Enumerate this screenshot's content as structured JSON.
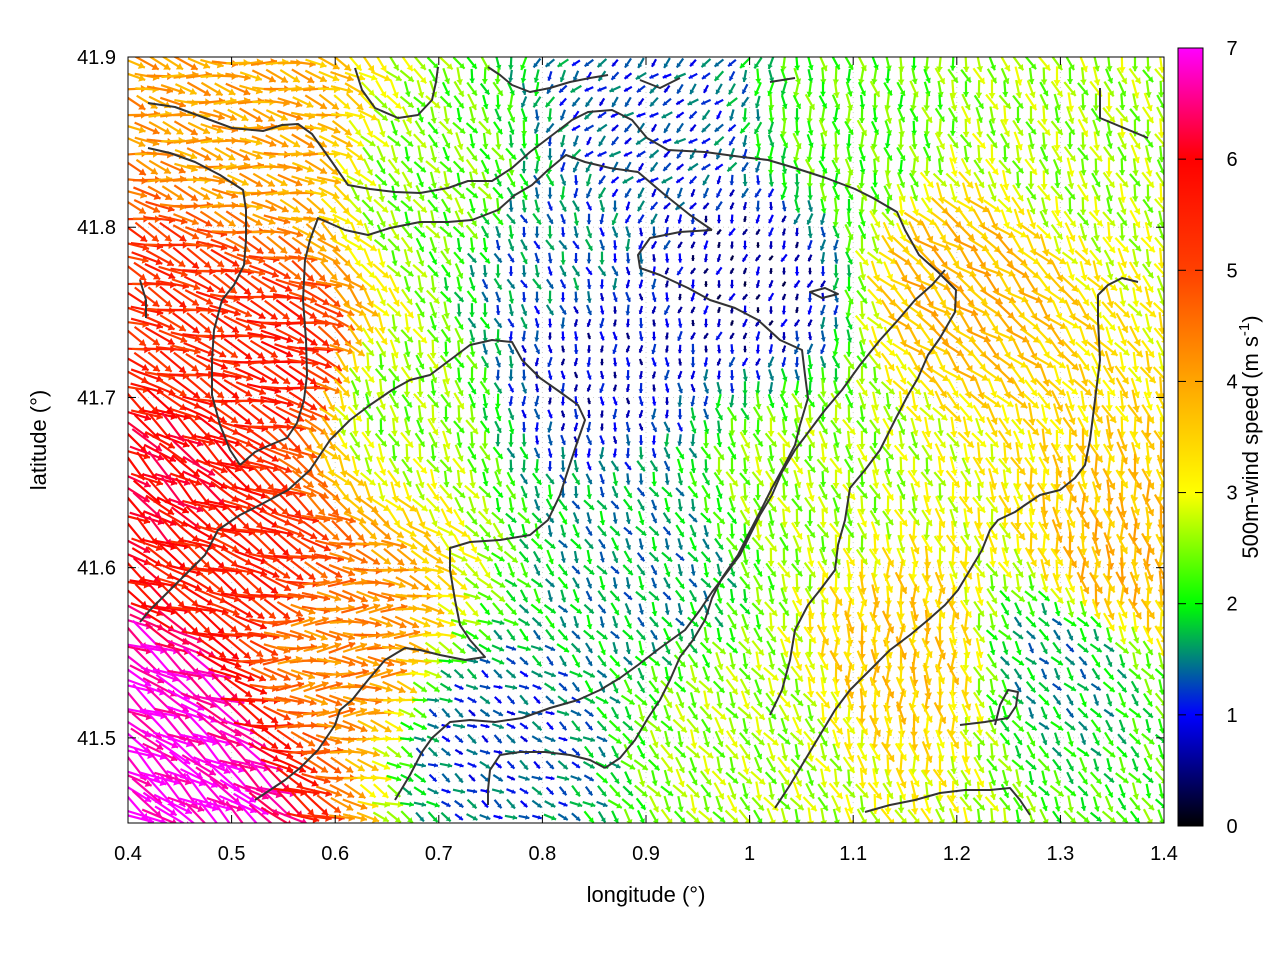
{
  "chart_data": {
    "type": "vector-field",
    "xlabel": "longitude (°)",
    "ylabel": "latitude (°)",
    "colorbar_label": "500m-wind speed (m s",
    "colorbar_label_sup": "-1",
    "colorbar_label_close": ")",
    "xlim": [
      0.4,
      1.4
    ],
    "ylim": [
      41.45,
      41.9
    ],
    "xticks": [
      "0.4",
      "0.5",
      "0.6",
      "0.7",
      "0.8",
      "0.9",
      "1",
      "1.1",
      "1.2",
      "1.3",
      "1.4"
    ],
    "xtick_values": [
      0.4,
      0.5,
      0.6,
      0.7,
      0.8,
      0.9,
      1.0,
      1.1,
      1.2,
      1.3,
      1.4
    ],
    "yticks": [
      "41.5",
      "41.6",
      "41.7",
      "41.8",
      "41.9"
    ],
    "ytick_values": [
      41.5,
      41.6,
      41.7,
      41.8,
      41.9
    ],
    "colorbar_range": [
      0,
      7
    ],
    "colorbar_ticks": [
      "0",
      "1",
      "2",
      "3",
      "4",
      "5",
      "6",
      "7"
    ],
    "colorbar_tick_values": [
      0,
      1,
      2,
      3,
      4,
      5,
      6,
      7
    ],
    "colormap": [
      {
        "v": 0,
        "color": "#000000"
      },
      {
        "v": 1,
        "color": "#0000ff"
      },
      {
        "v": 1.5,
        "color": "#008080"
      },
      {
        "v": 2,
        "color": "#00ff00"
      },
      {
        "v": 3,
        "color": "#ffff00"
      },
      {
        "v": 4,
        "color": "#ffa500"
      },
      {
        "v": 5,
        "color": "#ff4000"
      },
      {
        "v": 6,
        "color": "#ff0000"
      },
      {
        "v": 7,
        "color": "#ff00ff"
      }
    ],
    "grid": true,
    "wind_samples": [
      {
        "lon": 0.42,
        "lat": 41.52,
        "speed": 6.9,
        "dir": 120
      },
      {
        "lon": 0.45,
        "lat": 41.47,
        "speed": 7.0,
        "dir": 125
      },
      {
        "lon": 0.43,
        "lat": 41.65,
        "speed": 6.0,
        "dir": 125
      },
      {
        "lon": 0.45,
        "lat": 41.75,
        "speed": 5.3,
        "dir": 110
      },
      {
        "lon": 0.55,
        "lat": 41.72,
        "speed": 5.6,
        "dir": 105
      },
      {
        "lon": 0.5,
        "lat": 41.6,
        "speed": 5.5,
        "dir": 115
      },
      {
        "lon": 0.52,
        "lat": 41.85,
        "speed": 4.0,
        "dir": 100
      },
      {
        "lon": 0.6,
        "lat": 41.55,
        "speed": 4.3,
        "dir": 90
      },
      {
        "lon": 0.65,
        "lat": 41.7,
        "speed": 2.5,
        "dir": 160
      },
      {
        "lon": 0.7,
        "lat": 41.82,
        "speed": 2.4,
        "dir": 150
      },
      {
        "lon": 0.8,
        "lat": 41.78,
        "speed": 1.4,
        "dir": 160
      },
      {
        "lon": 0.85,
        "lat": 41.72,
        "speed": 0.8,
        "dir": 180
      },
      {
        "lon": 0.9,
        "lat": 41.6,
        "speed": 1.6,
        "dir": 150
      },
      {
        "lon": 0.9,
        "lat": 41.86,
        "speed": 1.2,
        "dir": 230
      },
      {
        "lon": 1.0,
        "lat": 41.77,
        "speed": 0.6,
        "dir": 200
      },
      {
        "lon": 1.05,
        "lat": 41.65,
        "speed": 2.6,
        "dir": 160
      },
      {
        "lon": 1.1,
        "lat": 41.85,
        "speed": 2.3,
        "dir": 170
      },
      {
        "lon": 1.2,
        "lat": 41.77,
        "speed": 3.8,
        "dir": 130
      },
      {
        "lon": 1.3,
        "lat": 41.85,
        "speed": 2.6,
        "dir": 160
      },
      {
        "lon": 1.3,
        "lat": 41.55,
        "speed": 1.6,
        "dir": 140
      },
      {
        "lon": 1.35,
        "lat": 41.6,
        "speed": 3.8,
        "dir": 170
      },
      {
        "lon": 1.15,
        "lat": 41.55,
        "speed": 3.6,
        "dir": 175
      },
      {
        "lon": 0.75,
        "lat": 41.5,
        "speed": 1.2,
        "dir": 120
      },
      {
        "lon": 1.0,
        "lat": 41.5,
        "speed": 2.6,
        "dir": 150
      }
    ]
  }
}
